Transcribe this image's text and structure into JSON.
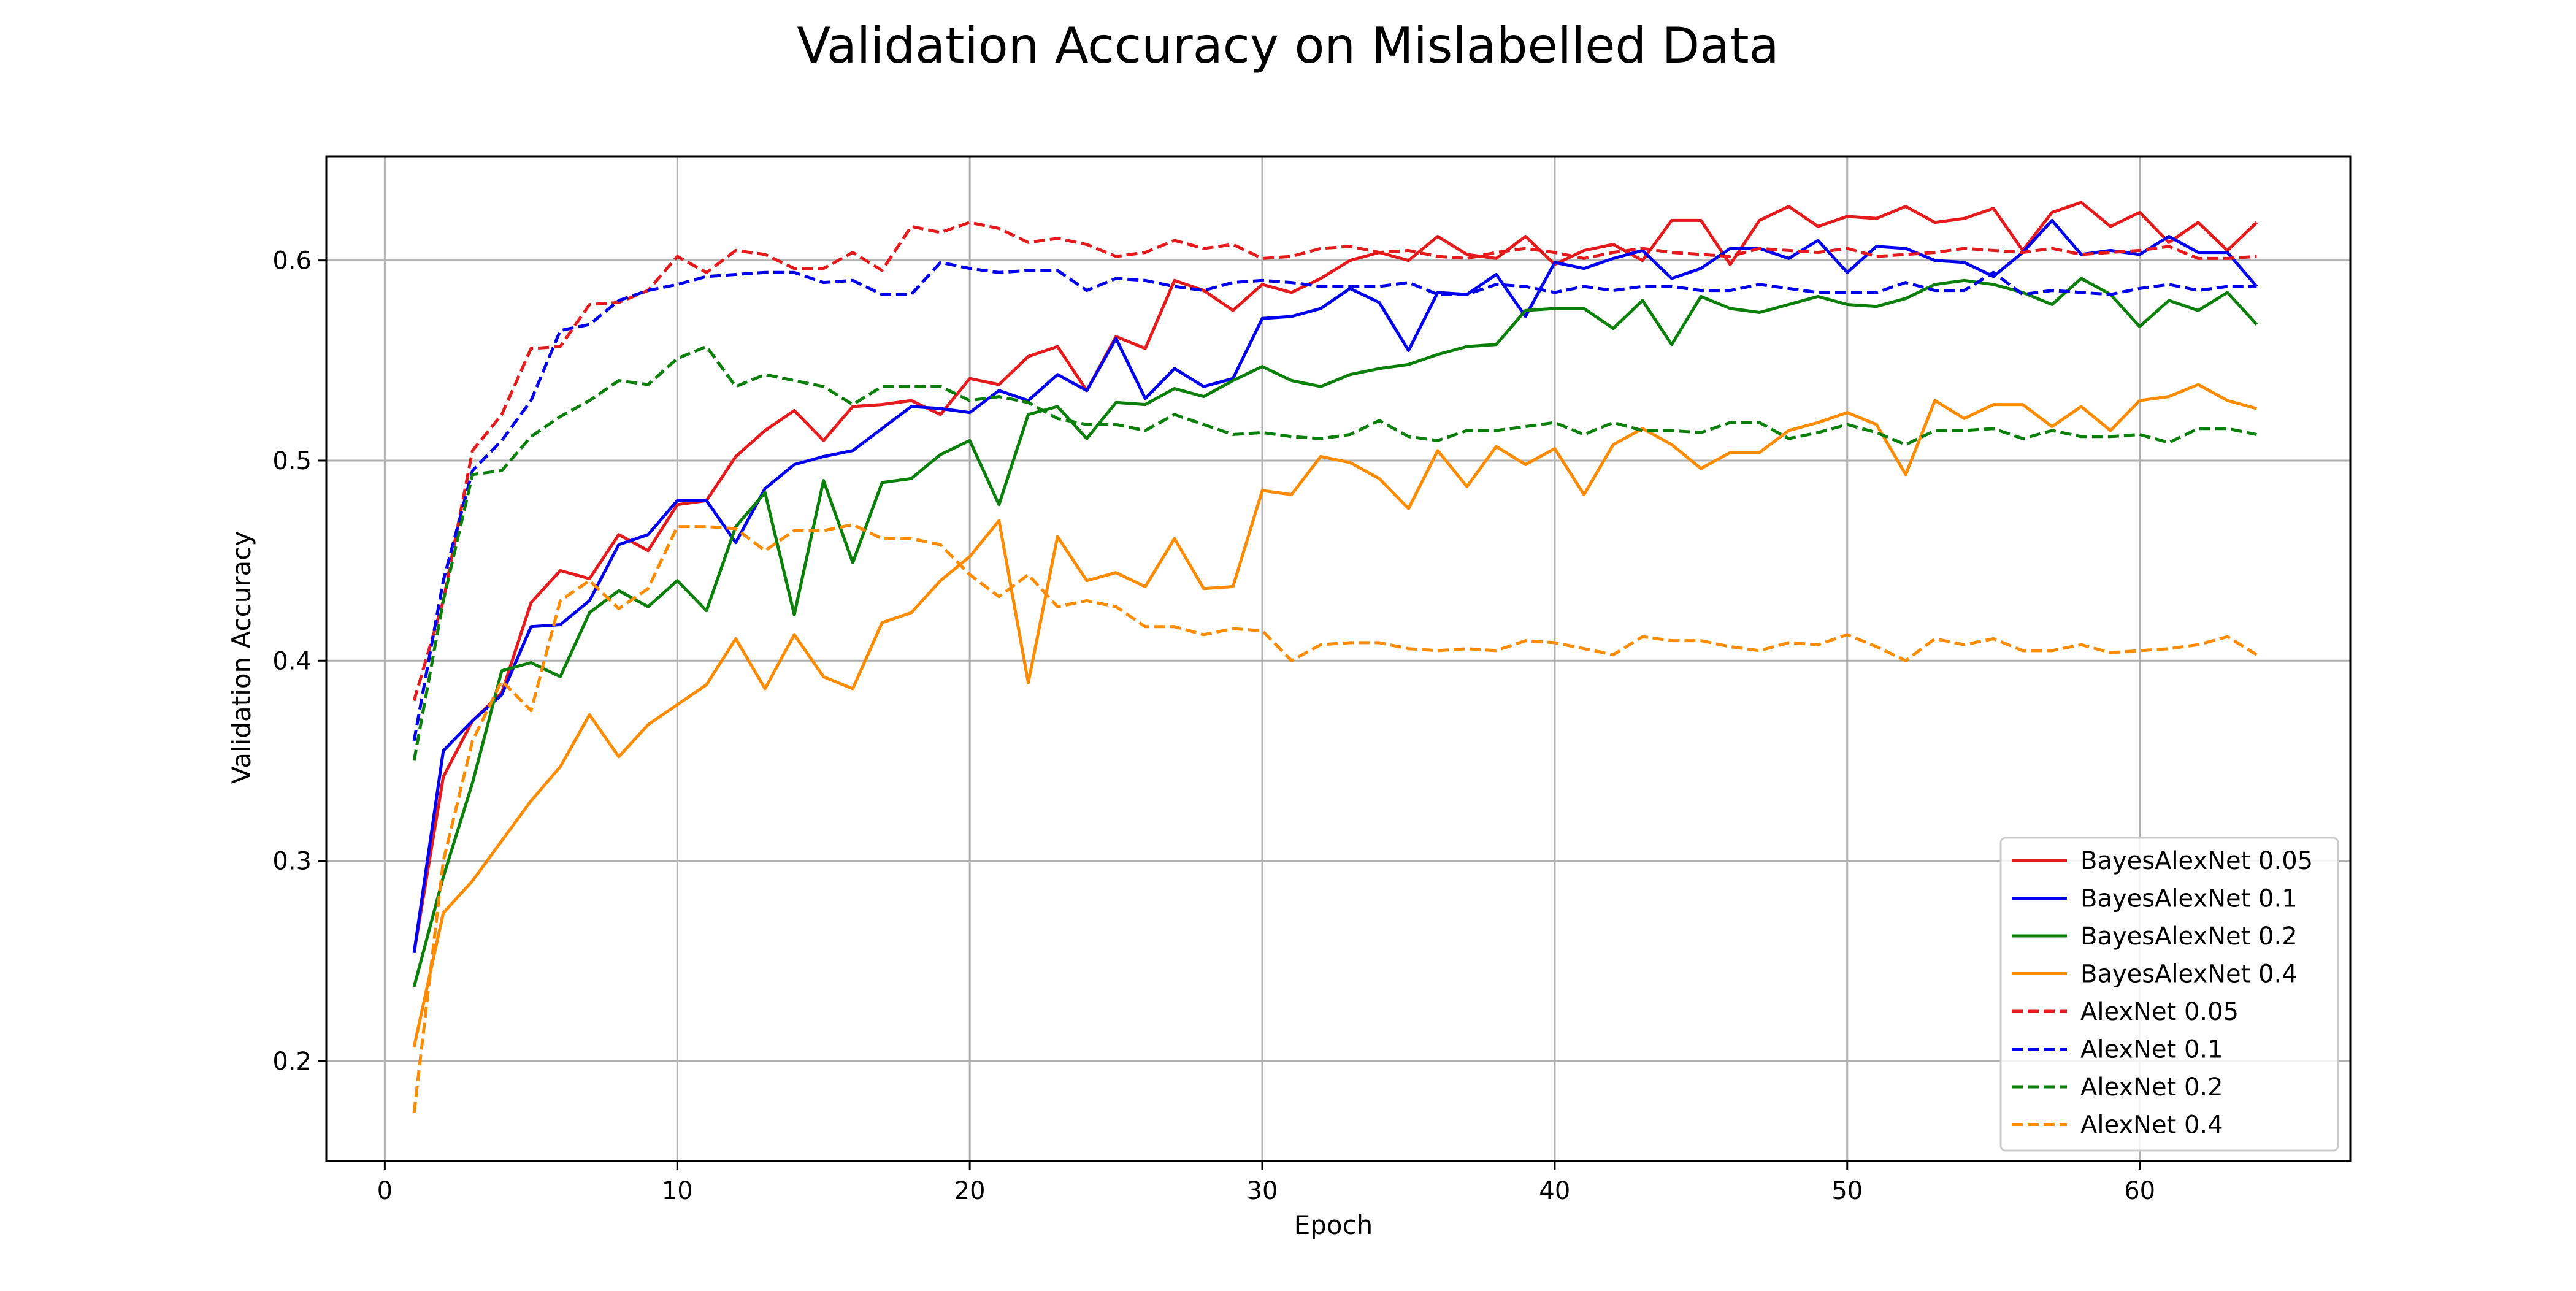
{
  "chart_data": {
    "type": "line",
    "title": "Validation Accuracy on Mislabelled Data",
    "xlabel": "Epoch",
    "ylabel": "Validation Accuracy",
    "xlim": [
      -2,
      67.2
    ],
    "ylim": [
      0.15,
      0.652
    ],
    "xticks": [
      0,
      10,
      20,
      30,
      40,
      50,
      60
    ],
    "yticks": [
      0.2,
      0.3,
      0.4,
      0.5,
      0.6
    ],
    "xtick_labels": [
      "0",
      "10",
      "20",
      "30",
      "40",
      "50",
      "60"
    ],
    "ytick_labels": [
      "0.2",
      "0.3",
      "0.4",
      "0.5",
      "0.6"
    ],
    "grid": true,
    "legend_position": "lower right",
    "x": [
      1,
      2,
      3,
      4,
      5,
      6,
      7,
      8,
      9,
      10,
      11,
      12,
      13,
      14,
      15,
      16,
      17,
      18,
      19,
      20,
      21,
      22,
      23,
      24,
      25,
      26,
      27,
      28,
      29,
      30,
      31,
      32,
      33,
      34,
      35,
      36,
      37,
      38,
      39,
      40,
      41,
      42,
      43,
      44,
      45,
      46,
      47,
      48,
      49,
      50,
      51,
      52,
      53,
      54,
      55,
      56,
      57,
      58,
      59,
      60,
      61,
      62,
      63,
      64
    ],
    "series": [
      {
        "name": "BayesAlexNet 0.05",
        "color": "#e41a1c",
        "dash": false,
        "values": [
          0.254,
          0.342,
          0.37,
          0.384,
          0.429,
          0.445,
          0.441,
          0.463,
          0.455,
          0.478,
          0.48,
          0.502,
          0.515,
          0.525,
          0.51,
          0.527,
          0.528,
          0.53,
          0.523,
          0.541,
          0.538,
          0.552,
          0.557,
          0.535,
          0.562,
          0.556,
          0.59,
          0.585,
          0.575,
          0.588,
          0.584,
          0.591,
          0.6,
          0.604,
          0.6,
          0.612,
          0.603,
          0.601,
          0.612,
          0.598,
          0.605,
          0.608,
          0.6,
          0.62,
          0.62,
          0.598,
          0.62,
          0.627,
          0.617,
          0.622,
          0.621,
          0.627,
          0.619,
          0.621,
          0.626,
          0.605,
          0.624,
          0.629,
          0.617,
          0.624,
          0.609,
          0.619,
          0.605,
          0.619
        ]
      },
      {
        "name": "BayesAlexNet 0.1",
        "color": "#0000ee",
        "dash": false,
        "values": [
          0.254,
          0.355,
          0.37,
          0.383,
          0.417,
          0.418,
          0.43,
          0.458,
          0.463,
          0.48,
          0.48,
          0.459,
          0.486,
          0.498,
          0.502,
          0.505,
          0.516,
          0.527,
          0.526,
          0.524,
          0.535,
          0.53,
          0.543,
          0.535,
          0.561,
          0.531,
          0.546,
          0.537,
          0.541,
          0.571,
          0.572,
          0.576,
          0.586,
          0.579,
          0.555,
          0.584,
          0.583,
          0.593,
          0.572,
          0.599,
          0.596,
          0.601,
          0.605,
          0.591,
          0.596,
          0.606,
          0.606,
          0.601,
          0.61,
          0.594,
          0.607,
          0.606,
          0.6,
          0.599,
          0.592,
          0.604,
          0.62,
          0.603,
          0.605,
          0.603,
          0.612,
          0.604,
          0.604,
          0.587
        ]
      },
      {
        "name": "BayesAlexNet 0.2",
        "color": "#0a7f0a",
        "dash": false,
        "values": [
          0.237,
          0.292,
          0.339,
          0.395,
          0.399,
          0.392,
          0.424,
          0.435,
          0.427,
          0.44,
          0.425,
          0.467,
          0.484,
          0.423,
          0.49,
          0.449,
          0.489,
          0.491,
          0.503,
          0.51,
          0.478,
          0.523,
          0.527,
          0.511,
          0.529,
          0.528,
          0.536,
          0.532,
          0.54,
          0.547,
          0.54,
          0.537,
          0.543,
          0.546,
          0.548,
          0.553,
          0.557,
          0.558,
          0.575,
          0.576,
          0.576,
          0.566,
          0.58,
          0.558,
          0.582,
          0.576,
          0.574,
          0.578,
          0.582,
          0.578,
          0.577,
          0.581,
          0.588,
          0.59,
          0.588,
          0.584,
          0.578,
          0.591,
          0.583,
          0.567,
          0.58,
          0.575,
          0.584,
          0.568
        ]
      },
      {
        "name": "BayesAlexNet 0.4",
        "color": "#ff8c00",
        "dash": false,
        "values": [
          0.207,
          0.274,
          0.29,
          0.31,
          0.33,
          0.347,
          0.373,
          0.352,
          0.368,
          0.378,
          0.388,
          0.411,
          0.386,
          0.413,
          0.392,
          0.386,
          0.419,
          0.424,
          0.44,
          0.452,
          0.47,
          0.389,
          0.462,
          0.44,
          0.444,
          0.437,
          0.461,
          0.436,
          0.437,
          0.485,
          0.483,
          0.502,
          0.499,
          0.491,
          0.476,
          0.505,
          0.487,
          0.507,
          0.498,
          0.506,
          0.483,
          0.508,
          0.516,
          0.508,
          0.496,
          0.504,
          0.504,
          0.515,
          0.519,
          0.524,
          0.518,
          0.493,
          0.53,
          0.521,
          0.528,
          0.528,
          0.517,
          0.527,
          0.515,
          0.53,
          0.532,
          0.538,
          0.53,
          0.526
        ]
      },
      {
        "name": "AlexNet 0.05",
        "color": "#e41a1c",
        "dash": true,
        "values": [
          0.38,
          0.43,
          0.505,
          0.523,
          0.556,
          0.557,
          0.578,
          0.579,
          0.585,
          0.602,
          0.594,
          0.605,
          0.603,
          0.596,
          0.596,
          0.604,
          0.595,
          0.617,
          0.614,
          0.619,
          0.616,
          0.609,
          0.611,
          0.608,
          0.602,
          0.604,
          0.61,
          0.606,
          0.608,
          0.601,
          0.602,
          0.606,
          0.607,
          0.604,
          0.605,
          0.602,
          0.601,
          0.604,
          0.606,
          0.604,
          0.601,
          0.604,
          0.606,
          0.604,
          0.603,
          0.602,
          0.606,
          0.605,
          0.604,
          0.606,
          0.602,
          0.603,
          0.604,
          0.606,
          0.605,
          0.604,
          0.606,
          0.603,
          0.604,
          0.605,
          0.607,
          0.601,
          0.601,
          0.602
        ]
      },
      {
        "name": "AlexNet 0.1",
        "color": "#0000ee",
        "dash": true,
        "values": [
          0.36,
          0.44,
          0.495,
          0.51,
          0.53,
          0.565,
          0.568,
          0.58,
          0.585,
          0.588,
          0.592,
          0.593,
          0.594,
          0.594,
          0.589,
          0.59,
          0.583,
          0.583,
          0.599,
          0.596,
          0.594,
          0.595,
          0.595,
          0.585,
          0.591,
          0.59,
          0.587,
          0.585,
          0.589,
          0.59,
          0.589,
          0.587,
          0.587,
          0.587,
          0.589,
          0.583,
          0.583,
          0.588,
          0.587,
          0.584,
          0.587,
          0.585,
          0.587,
          0.587,
          0.585,
          0.585,
          0.588,
          0.586,
          0.584,
          0.584,
          0.584,
          0.589,
          0.585,
          0.585,
          0.594,
          0.583,
          0.585,
          0.584,
          0.583,
          0.586,
          0.588,
          0.585,
          0.587,
          0.587
        ]
      },
      {
        "name": "AlexNet 0.2",
        "color": "#0a7f0a",
        "dash": true,
        "values": [
          0.35,
          0.43,
          0.493,
          0.495,
          0.512,
          0.522,
          0.53,
          0.54,
          0.538,
          0.551,
          0.557,
          0.537,
          0.543,
          0.54,
          0.537,
          0.528,
          0.537,
          0.537,
          0.537,
          0.53,
          0.532,
          0.529,
          0.521,
          0.518,
          0.518,
          0.515,
          0.523,
          0.518,
          0.513,
          0.514,
          0.512,
          0.511,
          0.513,
          0.52,
          0.512,
          0.51,
          0.515,
          0.515,
          0.517,
          0.519,
          0.513,
          0.519,
          0.515,
          0.515,
          0.514,
          0.519,
          0.519,
          0.511,
          0.514,
          0.518,
          0.514,
          0.508,
          0.515,
          0.515,
          0.516,
          0.511,
          0.515,
          0.512,
          0.512,
          0.513,
          0.509,
          0.516,
          0.516,
          0.513
        ]
      },
      {
        "name": "AlexNet 0.4",
        "color": "#ff8c00",
        "dash": true,
        "values": [
          0.174,
          0.3,
          0.36,
          0.39,
          0.375,
          0.43,
          0.44,
          0.426,
          0.436,
          0.467,
          0.467,
          0.466,
          0.455,
          0.465,
          0.465,
          0.468,
          0.461,
          0.461,
          0.458,
          0.443,
          0.432,
          0.443,
          0.427,
          0.43,
          0.427,
          0.417,
          0.417,
          0.413,
          0.416,
          0.415,
          0.4,
          0.408,
          0.409,
          0.409,
          0.406,
          0.405,
          0.406,
          0.405,
          0.41,
          0.409,
          0.406,
          0.403,
          0.412,
          0.41,
          0.41,
          0.407,
          0.405,
          0.409,
          0.408,
          0.413,
          0.407,
          0.4,
          0.411,
          0.408,
          0.411,
          0.405,
          0.405,
          0.408,
          0.404,
          0.405,
          0.406,
          0.408,
          0.412,
          0.403
        ]
      }
    ]
  }
}
